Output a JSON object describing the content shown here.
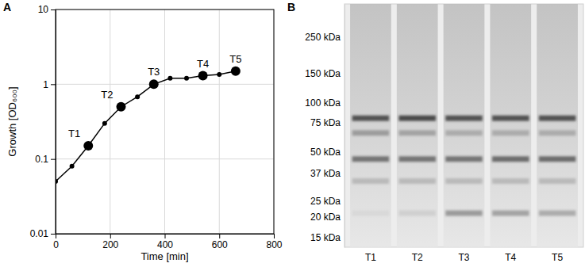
{
  "chart_data": [
    {
      "type": "line",
      "title": "A",
      "x_label": "Time [min]",
      "y_label": "Growth [OD₆₀₀]",
      "x": [
        0,
        60,
        120,
        180,
        240,
        300,
        360,
        420,
        480,
        540,
        600,
        660
      ],
      "series": [
        {
          "color": "#000000",
          "marker": "circle",
          "values": [
            0.05,
            0.08,
            0.15,
            0.3,
            0.5,
            0.68,
            1.0,
            1.2,
            1.2,
            1.3,
            1.35,
            1.5
          ]
        }
      ],
      "annotations": [
        {
          "x": 120,
          "y": 0.15,
          "text": "T1"
        },
        {
          "x": 240,
          "y": 0.5,
          "text": "T2"
        },
        {
          "x": 360,
          "y": 1.0,
          "text": "T3"
        },
        {
          "x": 540,
          "y": 1.3,
          "text": "T4"
        },
        {
          "x": 660,
          "y": 1.5,
          "text": "T5"
        }
      ],
      "xlim": [
        0,
        800
      ],
      "xticks": [
        0,
        200,
        400,
        600,
        800
      ],
      "ylim": [
        0.01,
        10
      ],
      "yticks": [
        0.01,
        0.1,
        1,
        10
      ],
      "log": "y",
      "grid": true
    },
    {
      "type": "blot",
      "title": "B",
      "categories": [
        "T1",
        "T2",
        "T3",
        "T4",
        "T5"
      ],
      "ylim": [
        13,
        400
      ],
      "yticks": [
        {
          "value": 250,
          "label": "250 kDa"
        },
        {
          "value": 150,
          "label": "150 kDa"
        },
        {
          "value": 100,
          "label": "100 kDa"
        },
        {
          "value": 75,
          "label": "75 kDa"
        },
        {
          "value": 50,
          "label": "50 kDa"
        },
        {
          "value": 37,
          "label": "37 kDa"
        },
        {
          "value": 25,
          "label": "25 kDa"
        },
        {
          "value": 20,
          "label": "20 kDa"
        },
        {
          "value": 15,
          "label": "15 kDa"
        }
      ],
      "log": "y",
      "bands": [
        80,
        65,
        45,
        33,
        21
      ],
      "intensity": [
        [
          0.8,
          0.35,
          0.6,
          0.2,
          0.05
        ],
        [
          0.85,
          0.3,
          0.6,
          0.2,
          0.1
        ],
        [
          0.8,
          0.25,
          0.6,
          0.2,
          0.4
        ],
        [
          0.8,
          0.25,
          0.65,
          0.2,
          0.35
        ],
        [
          0.8,
          0.25,
          0.65,
          0.2,
          0.3
        ]
      ],
      "color": "#333333"
    }
  ]
}
